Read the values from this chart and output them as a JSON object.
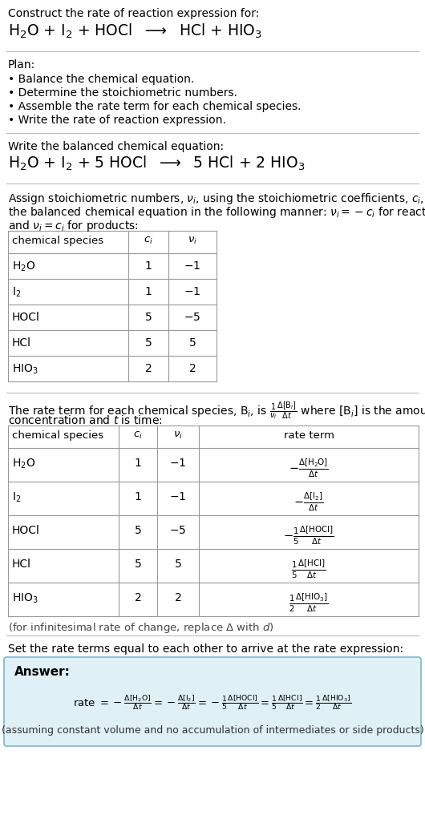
{
  "bg_color": "#ffffff",
  "text_color": "#000000",
  "table_border": "#aaaaaa",
  "answer_bg": "#dff0f7",
  "answer_border": "#7ab8cc",
  "title_text": "Construct the rate of reaction expression for:",
  "reaction_unbalanced": "H$_2$O + I$_2$ + HOCl  $\\longrightarrow$  HCl + HIO$_3$",
  "plan_header": "Plan:",
  "plan_items": [
    "• Balance the chemical equation.",
    "• Determine the stoichiometric numbers.",
    "• Assemble the rate term for each chemical species.",
    "• Write the rate of reaction expression."
  ],
  "balanced_header": "Write the balanced chemical equation:",
  "balanced_reaction": "H$_2$O + I$_2$ + 5 HOCl  $\\longrightarrow$  5 HCl + 2 HIO$_3$",
  "stoich_header1": "Assign stoichiometric numbers, $\\nu_i$, using the stoichiometric coefficients, $c_i$, from",
  "stoich_header2": "the balanced chemical equation in the following manner: $\\nu_i = -c_i$ for reactants",
  "stoich_header3": "and $\\nu_i = c_i$ for products:",
  "table1_cols": [
    "chemical species",
    "$c_i$",
    "$\\nu_i$"
  ],
  "table1_rows": [
    [
      "H$_2$O",
      "1",
      "$-1$"
    ],
    [
      "I$_2$",
      "1",
      "$-1$"
    ],
    [
      "HOCl",
      "5",
      "$-5$"
    ],
    [
      "HCl",
      "5",
      "5"
    ],
    [
      "HIO$_3$",
      "2",
      "2"
    ]
  ],
  "rate_header1": "The rate term for each chemical species, B$_i$, is $\\frac{1}{\\nu_i}\\frac{\\Delta[\\mathrm{B}_i]}{\\Delta t}$ where [B$_i$] is the amount",
  "rate_header2": "concentration and $t$ is time:",
  "table2_cols": [
    "chemical species",
    "$c_i$",
    "$\\nu_i$",
    "rate term"
  ],
  "table2_rows": [
    [
      "H$_2$O",
      "1",
      "$-1$",
      "$-\\frac{\\Delta[\\mathrm{H_2O}]}{\\Delta t}$"
    ],
    [
      "I$_2$",
      "1",
      "$-1$",
      "$-\\frac{\\Delta[\\mathrm{I_2}]}{\\Delta t}$"
    ],
    [
      "HOCl",
      "5",
      "$-5$",
      "$-\\frac{1}{5}\\frac{\\Delta[\\mathrm{HOCl}]}{\\Delta t}$"
    ],
    [
      "HCl",
      "5",
      "5",
      "$\\frac{1}{5}\\frac{\\Delta[\\mathrm{HCl}]}{\\Delta t}$"
    ],
    [
      "HIO$_3$",
      "2",
      "2",
      "$\\frac{1}{2}\\frac{\\Delta[\\mathrm{HIO_3}]}{\\Delta t}$"
    ]
  ],
  "infinitesimal_note": "(for infinitesimal rate of change, replace $\\Delta$ with $d$)",
  "set_rate_text": "Set the rate terms equal to each other to arrive at the rate expression:",
  "answer_label": "Answer:",
  "rate_expression_parts": [
    "rate $= -\\frac{\\Delta[\\mathrm{H_2O}]}{\\Delta t}$",
    "$= -\\frac{\\Delta[\\mathrm{I_2}]}{\\Delta t}$",
    "$= -\\frac{1}{5}\\frac{\\Delta[\\mathrm{HOCl}]}{\\Delta t}$",
    "$= \\frac{1}{5}\\frac{\\Delta[\\mathrm{HCl}]}{\\Delta t}$",
    "$= \\frac{1}{2}\\frac{\\Delta[\\mathrm{HIO_3}]}{\\Delta t}$"
  ],
  "assuming_text": "(assuming constant volume and no accumulation of intermediates or side products)"
}
